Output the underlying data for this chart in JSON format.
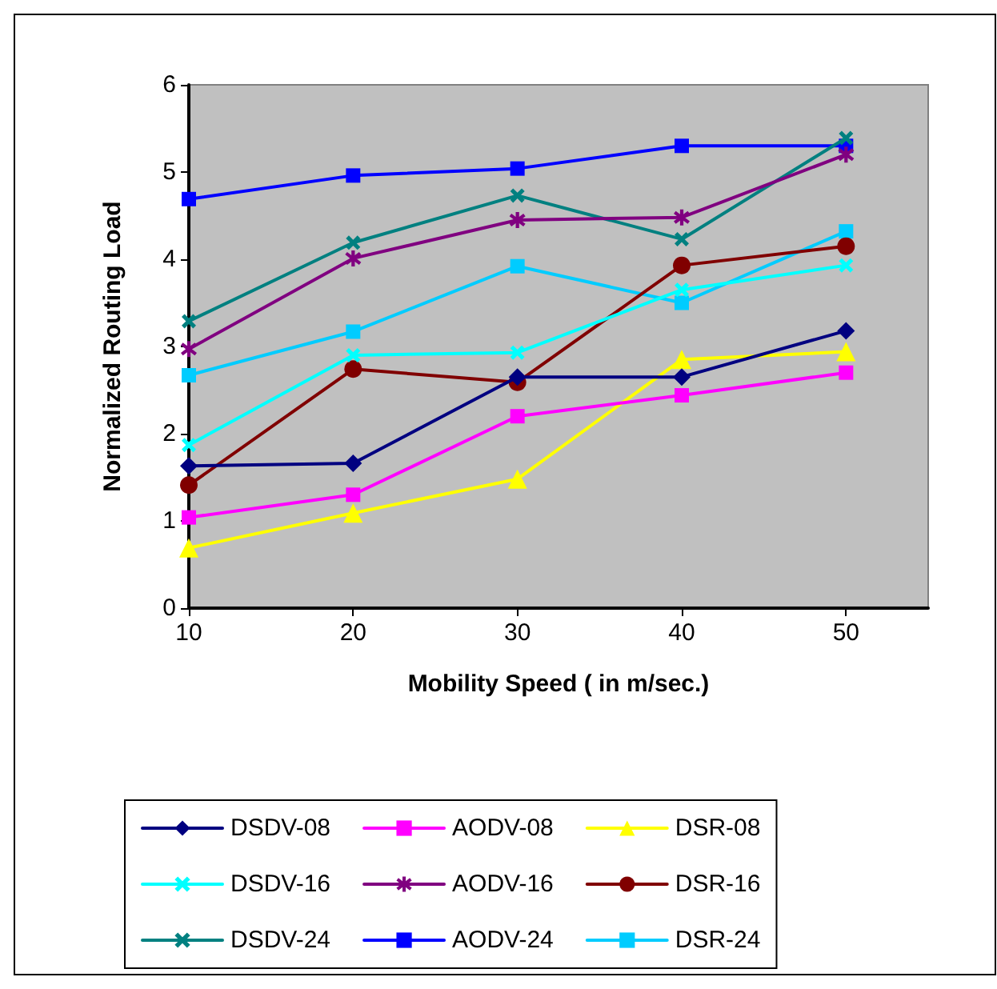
{
  "chart_data": {
    "type": "line",
    "xlabel": "Mobility Speed ( in m/sec.)",
    "ylabel": "Normalized Routing Load",
    "x": [
      10,
      20,
      30,
      40,
      50
    ],
    "xlim": [
      10,
      55
    ],
    "xticks": [
      10,
      20,
      30,
      40,
      50
    ],
    "ylim": [
      0,
      6
    ],
    "yticks": [
      0,
      1,
      2,
      3,
      4,
      5,
      6
    ],
    "grid": false,
    "legend": "bottom",
    "line_style": "solid",
    "series": [
      {
        "name": "DSDV-08",
        "color": "#000080",
        "marker": "diamond",
        "values": [
          1.63,
          1.66,
          2.65,
          2.65,
          3.18
        ]
      },
      {
        "name": "AODV-08",
        "color": "#ff00ff",
        "marker": "square",
        "values": [
          1.04,
          1.3,
          2.2,
          2.44,
          2.7
        ]
      },
      {
        "name": "DSR-08",
        "color": "#ffff00",
        "marker": "triangle",
        "values": [
          0.69,
          1.09,
          1.48,
          2.85,
          2.94
        ]
      },
      {
        "name": "DSDV-16",
        "color": "#00ffff",
        "marker": "cross",
        "values": [
          1.87,
          2.9,
          2.93,
          3.65,
          3.93
        ]
      },
      {
        "name": "AODV-16",
        "color": "#800080",
        "marker": "star",
        "values": [
          2.97,
          4.01,
          4.45,
          4.48,
          5.2
        ]
      },
      {
        "name": "DSR-16",
        "color": "#800000",
        "marker": "circle",
        "values": [
          1.41,
          2.74,
          2.59,
          3.93,
          4.15
        ]
      },
      {
        "name": "DSDV-24",
        "color": "#008080",
        "marker": "cross",
        "values": [
          3.29,
          4.19,
          4.73,
          4.23,
          5.39
        ]
      },
      {
        "name": "AODV-24",
        "color": "#0000ff",
        "marker": "square",
        "values": [
          4.69,
          4.96,
          5.04,
          5.3,
          5.3
        ]
      },
      {
        "name": "DSR-24",
        "color": "#00ccff",
        "marker": "square",
        "values": [
          2.67,
          3.17,
          3.92,
          3.5,
          4.32
        ]
      }
    ]
  }
}
